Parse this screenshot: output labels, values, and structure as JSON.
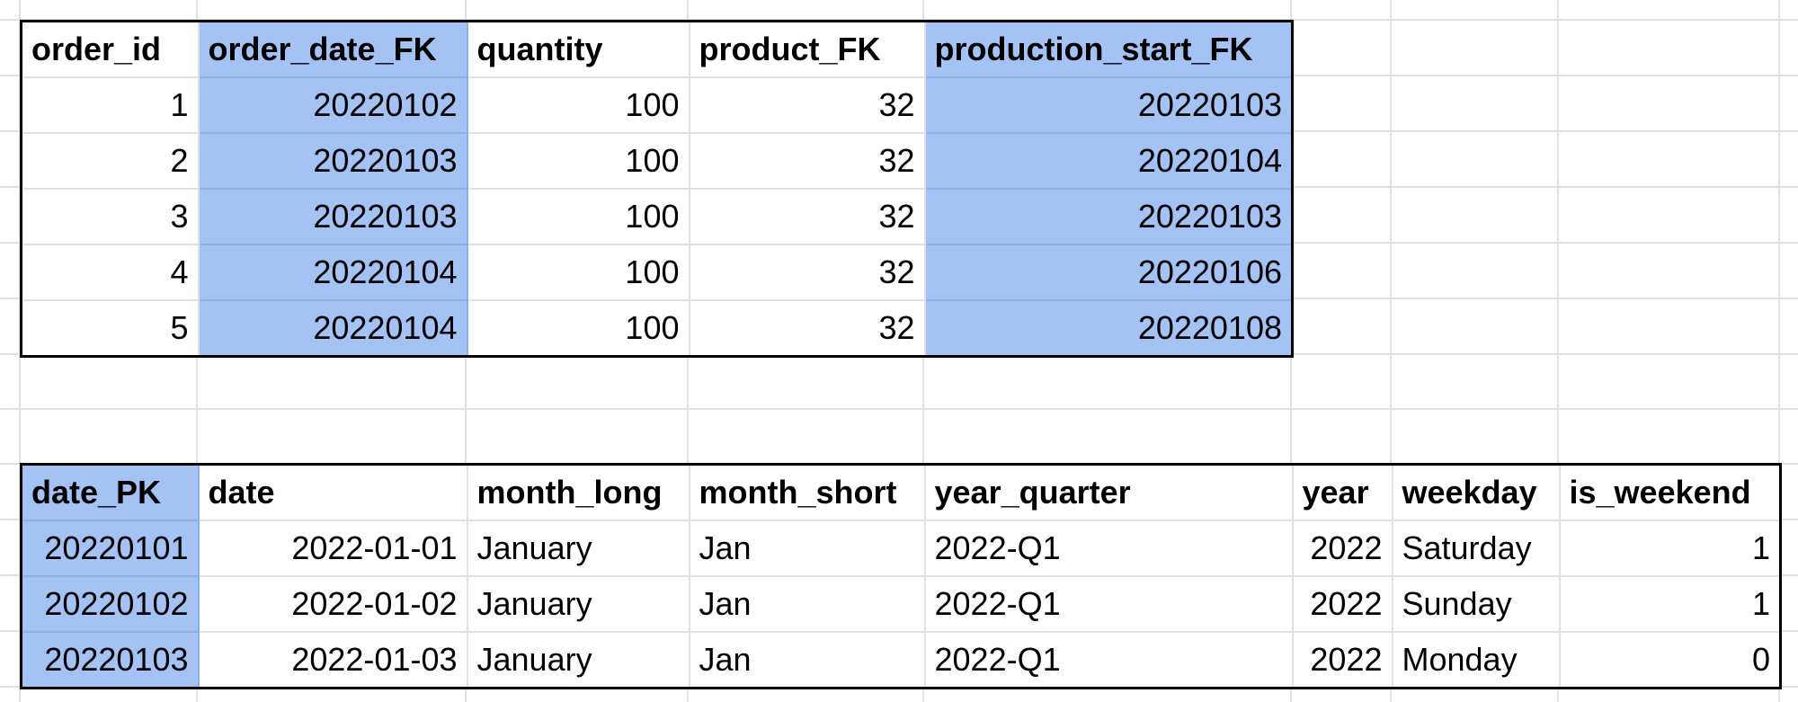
{
  "orders_table": {
    "headers": [
      "order_id",
      "order_date_FK",
      "quantity",
      "product_FK",
      "production_start_FK"
    ],
    "rows": [
      [
        "1",
        "20220102",
        "100",
        "32",
        "20220103"
      ],
      [
        "2",
        "20220103",
        "100",
        "32",
        "20220104"
      ],
      [
        "3",
        "20220103",
        "100",
        "32",
        "20220103"
      ],
      [
        "4",
        "20220104",
        "100",
        "32",
        "20220106"
      ],
      [
        "5",
        "20220104",
        "100",
        "32",
        "20220108"
      ]
    ]
  },
  "dates_table": {
    "headers": [
      "date_PK",
      "date",
      "month_long",
      "month_short",
      "year_quarter",
      "year",
      "weekday",
      "is_weekend"
    ],
    "rows": [
      [
        "20220101",
        "2022-01-01",
        "January",
        "Jan",
        "2022-Q1",
        "2022",
        "Saturday",
        "1"
      ],
      [
        "20220102",
        "2022-01-02",
        "January",
        "Jan",
        "2022-Q1",
        "2022",
        "Sunday",
        "1"
      ],
      [
        "20220103",
        "2022-01-03",
        "January",
        "Jan",
        "2022-Q1",
        "2022",
        "Monday",
        "0"
      ]
    ]
  },
  "colors": {
    "key_highlight": "#a4c2f4",
    "gridline": "#e0e0e0",
    "table_border": "#000000"
  }
}
